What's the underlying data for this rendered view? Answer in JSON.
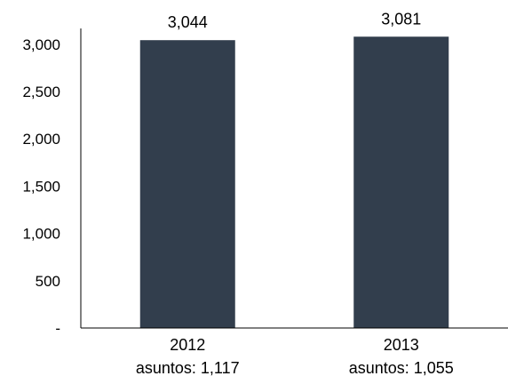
{
  "chart_data": {
    "type": "bar",
    "categories": [
      "2012",
      "2013"
    ],
    "category_sublabels": [
      "asuntos: 1,117",
      "asuntos: 1,055"
    ],
    "values": [
      3044,
      3081
    ],
    "data_labels": [
      "3,044",
      "3,081"
    ],
    "y_ticks": [
      0,
      500,
      1000,
      1500,
      2000,
      2500,
      3000
    ],
    "y_tick_labels": [
      "-",
      "500",
      "1,000",
      "1,500",
      "2,000",
      "2,500",
      "3,000"
    ],
    "ylim": [
      0,
      3300
    ],
    "bar_color": "#323e4d",
    "grid": false,
    "legend": "none"
  }
}
